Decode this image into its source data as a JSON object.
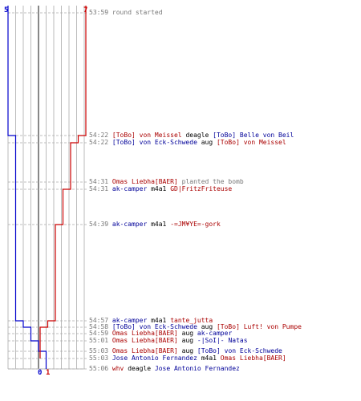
{
  "scoreboard": {
    "ct_start": "5",
    "t_start": "7",
    "ct_end": "0",
    "t_end": "1",
    "colors": {
      "ct": "#0000cc",
      "t": "#cc0000",
      "grid": "#bbbbbb",
      "axis": "#555555"
    }
  },
  "chart_data": {
    "type": "line",
    "series": [
      {
        "team": "ct",
        "values": [
          5,
          4,
          3,
          2,
          1,
          0
        ]
      },
      {
        "team": "t",
        "values": [
          7,
          6,
          5,
          4,
          3,
          2,
          1
        ]
      }
    ]
  },
  "events": [
    {
      "time": "53:59",
      "parts": [
        {
          "text": "round started",
          "role": "msg"
        }
      ]
    },
    {
      "time": "54:22",
      "parts": [
        {
          "text": "[ToBo] von Meissel",
          "role": "t"
        },
        {
          "text": " deagle ",
          "role": "wpn"
        },
        {
          "text": "[ToBo] Belle von Beil",
          "role": "ct"
        }
      ]
    },
    {
      "time": "54:22",
      "parts": [
        {
          "text": "[ToBo] von Eck-Schwede",
          "role": "ct"
        },
        {
          "text": " aug ",
          "role": "wpn"
        },
        {
          "text": "[ToBo] von Meissel",
          "role": "t"
        }
      ]
    },
    {
      "time": "54:31",
      "parts": [
        {
          "text": "Omas Liebha[BAER]",
          "role": "t"
        },
        {
          "text": " planted the bomb",
          "role": "msg"
        }
      ]
    },
    {
      "time": "54:31",
      "parts": [
        {
          "text": "ak-camper",
          "role": "ct"
        },
        {
          "text": " m4a1 ",
          "role": "wpn"
        },
        {
          "text": "GD|FritzFriteuse",
          "role": "t"
        }
      ]
    },
    {
      "time": "54:39",
      "parts": [
        {
          "text": "ak-camper",
          "role": "ct"
        },
        {
          "text": " m4a1 ",
          "role": "wpn"
        },
        {
          "text": "-=JM¥YE=-gork",
          "role": "t"
        }
      ]
    },
    {
      "time": "54:57",
      "parts": [
        {
          "text": "ak-camper",
          "role": "ct"
        },
        {
          "text": " m4a1 ",
          "role": "wpn"
        },
        {
          "text": "tante_jutta",
          "role": "t"
        }
      ]
    },
    {
      "time": "54:58",
      "parts": [
        {
          "text": "[ToBo] von Eck-Schwede",
          "role": "ct"
        },
        {
          "text": " aug ",
          "role": "wpn"
        },
        {
          "text": "[ToBo] Luft! von Pumpe",
          "role": "t"
        }
      ]
    },
    {
      "time": "54:59",
      "parts": [
        {
          "text": "Omas Liebha[BAER]",
          "role": "t"
        },
        {
          "text": " aug ",
          "role": "wpn"
        },
        {
          "text": "ak-camper",
          "role": "ct"
        }
      ]
    },
    {
      "time": "55:01",
      "parts": [
        {
          "text": "Omas Liebha[BAER]",
          "role": "t"
        },
        {
          "text": " aug ",
          "role": "wpn"
        },
        {
          "text": "-|SoI|- Natas",
          "role": "ct"
        }
      ]
    },
    {
      "time": "55:03",
      "parts": [
        {
          "text": "Omas Liebha[BAER]",
          "role": "t"
        },
        {
          "text": " aug ",
          "role": "wpn"
        },
        {
          "text": "[ToBo] von Eck-Schwede",
          "role": "ct"
        }
      ]
    },
    {
      "time": "55:03",
      "parts": [
        {
          "text": "Jose Antonio Fernandez",
          "role": "ct"
        },
        {
          "text": " m4a1 ",
          "role": "wpn"
        },
        {
          "text": "Omas Liebha[BAER]",
          "role": "t"
        }
      ]
    },
    {
      "time": "55:06",
      "parts": [
        {
          "text": "whv",
          "role": "t"
        },
        {
          "text": " deagle ",
          "role": "wpn"
        },
        {
          "text": "Jose Antonio Fernandez",
          "role": "ct"
        }
      ]
    }
  ]
}
